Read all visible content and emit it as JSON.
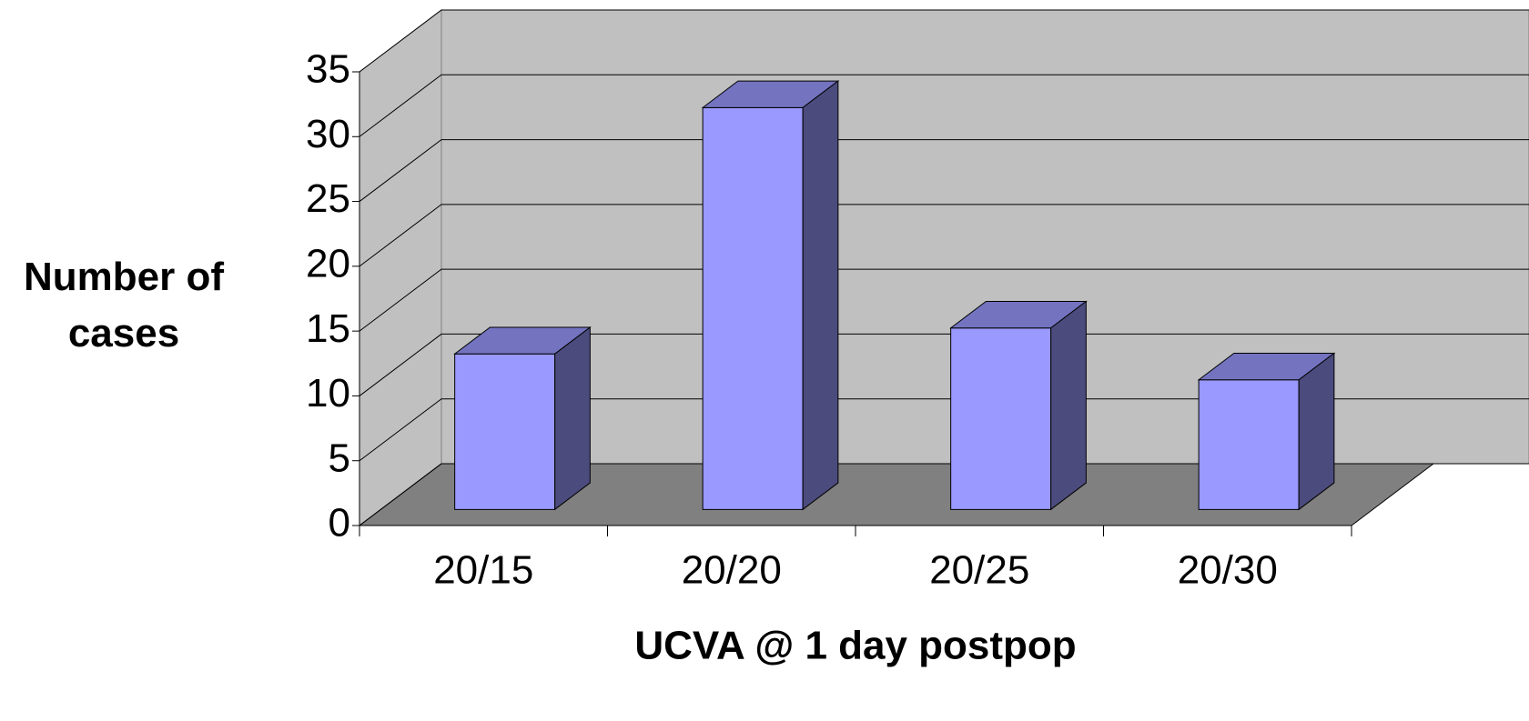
{
  "chart_data": {
    "type": "bar3d",
    "x_label": "UCVA @ 1 day postpop",
    "y_label": "Number of cases",
    "categories": [
      "20/15",
      "20/20",
      "20/25",
      "20/30"
    ],
    "values": [
      12,
      31,
      14,
      10
    ],
    "color": "#9999ff",
    "ylim": [
      0,
      35
    ],
    "yticks": [
      0,
      5,
      10,
      15,
      20,
      25,
      30,
      35
    ],
    "grid": true
  }
}
